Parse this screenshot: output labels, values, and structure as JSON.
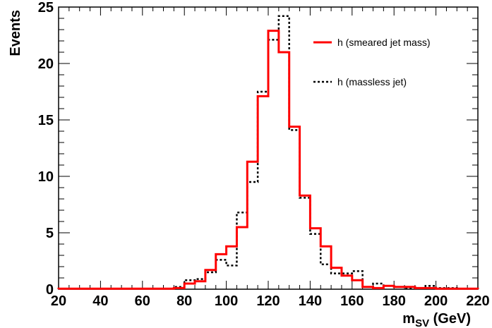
{
  "chart_data": {
    "type": "line",
    "style": "step-histogram",
    "xlabel_main": "m",
    "xlabel_sub": "SV",
    "xlabel_unit": " (GeV)",
    "ylabel": "Events",
    "xlim": [
      20,
      220
    ],
    "ylim": [
      0,
      25
    ],
    "x_ticks": [
      20,
      40,
      60,
      80,
      100,
      120,
      140,
      160,
      180,
      200,
      220
    ],
    "y_ticks": [
      0,
      5,
      10,
      15,
      20,
      25
    ],
    "bin_edges": [
      20,
      25,
      30,
      35,
      40,
      45,
      50,
      55,
      60,
      65,
      70,
      75,
      80,
      85,
      90,
      95,
      100,
      105,
      110,
      115,
      120,
      125,
      130,
      135,
      140,
      145,
      150,
      155,
      160,
      165,
      170,
      175,
      180,
      185,
      190,
      195,
      200,
      205,
      210,
      215,
      220
    ],
    "legend_position": "top-right",
    "series": [
      {
        "name": "h (smeared jet mass)",
        "color": "#ff0000",
        "line": "solid",
        "values": [
          0.05,
          0.05,
          0.05,
          0.05,
          0.05,
          0.05,
          0.05,
          0.05,
          0.05,
          0.05,
          0.05,
          0.1,
          0.5,
          0.7,
          1.7,
          3.1,
          3.8,
          5.5,
          11.3,
          17.1,
          22.9,
          21.0,
          14.4,
          8.3,
          5.4,
          3.8,
          1.9,
          1.2,
          0.8,
          0.2,
          0.1,
          0.3,
          0.2,
          0.2,
          0.1,
          0.1,
          0.05,
          0.05,
          0.05,
          0.05
        ]
      },
      {
        "name": "h (massless jet)",
        "color": "#000000",
        "line": "dotted",
        "values": [
          0.05,
          0.05,
          0.05,
          0.05,
          0.05,
          0.05,
          0.05,
          0.05,
          0.05,
          0.05,
          0.05,
          0.2,
          0.8,
          0.9,
          1.5,
          2.6,
          2.1,
          6.8,
          9.5,
          17.5,
          22.1,
          24.2,
          14.1,
          8.1,
          4.9,
          2.2,
          1.4,
          1.4,
          1.6,
          0.2,
          0.5,
          0.3,
          0.2,
          0.1,
          0.1,
          0.3,
          0.1,
          0.1,
          0.05,
          0.05
        ]
      }
    ]
  }
}
